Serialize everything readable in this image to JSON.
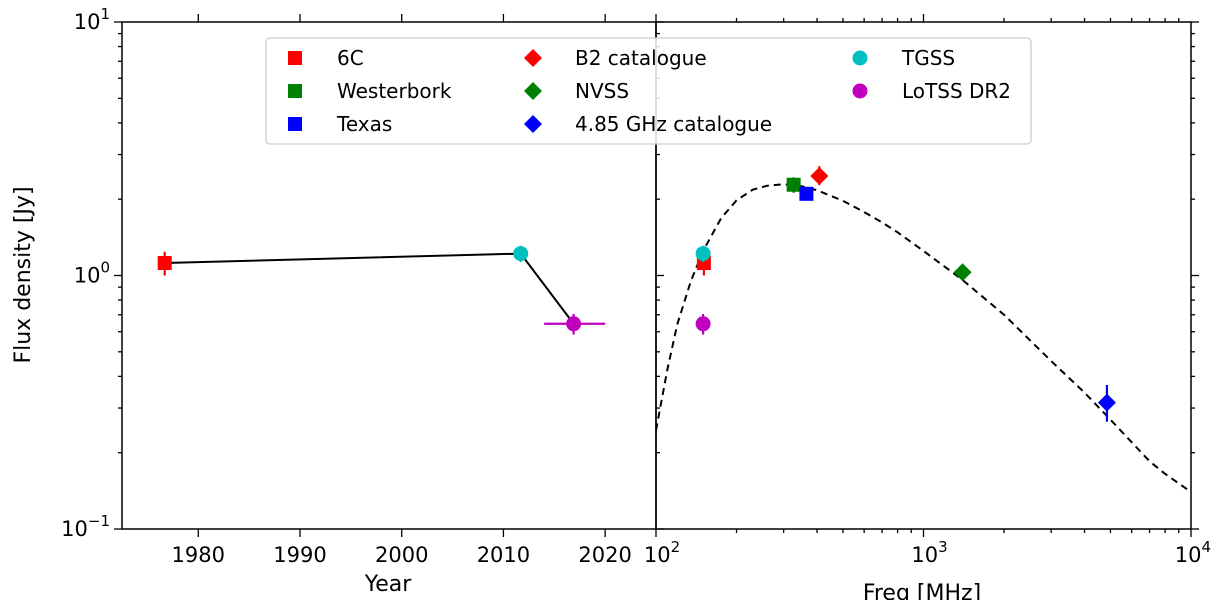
{
  "chart_data": [
    {
      "type": "scatter",
      "panel": "left",
      "xlabel": "Year",
      "ylabel": "Flux density [Jy]",
      "xlim": [
        1972.5,
        2025
      ],
      "ylim": [
        0.1,
        10
      ],
      "yscale": "log",
      "xticks": [
        1980,
        1990,
        2000,
        2010,
        2020
      ],
      "x_tick_labels": [
        "1980",
        "1990",
        "2000",
        "2010",
        "2020"
      ],
      "y_tick_labels": [
        {
          "base": "10",
          "exp": "−1",
          "value": 0.1
        },
        {
          "base": "10",
          "exp": "0",
          "value": 1
        },
        {
          "base": "10",
          "exp": "1",
          "value": 10
        }
      ],
      "line": [
        {
          "x": 1976.7,
          "y": 1.12
        },
        {
          "x": 2011.7,
          "y": 1.22
        },
        {
          "x": 2016.9,
          "y": 0.645
        }
      ],
      "series": [
        {
          "name": "6C",
          "marker": "square",
          "color": "#ff0000",
          "points": [
            {
              "x": 1976.7,
              "y": 1.12,
              "yerr": [
                1.0,
                1.24
              ],
              "xerr": null
            }
          ]
        },
        {
          "name": "TGSS",
          "marker": "circle",
          "color": "#00bfbf",
          "points": [
            {
              "x": 2011.7,
              "y": 1.22,
              "yerr": [
                1.13,
                1.31
              ],
              "xerr": null
            }
          ]
        },
        {
          "name": "LoTSS DR2",
          "marker": "circle",
          "color": "#bf00bf",
          "points": [
            {
              "x": 2016.9,
              "y": 0.645,
              "yerr": [
                0.585,
                0.705
              ],
              "xerr": [
                2014,
                2020
              ]
            }
          ]
        }
      ]
    },
    {
      "type": "scatter",
      "panel": "right",
      "xlabel": "Freq [MHz]",
      "xscale": "log",
      "yscale": "log",
      "xlim": [
        100,
        10000
      ],
      "ylim": [
        0.1,
        10
      ],
      "x_tick_labels": [
        {
          "base": "10",
          "exp": "2",
          "value": 100
        },
        {
          "base": "10",
          "exp": "3",
          "value": 1000
        },
        {
          "base": "10",
          "exp": "4",
          "value": 10000
        }
      ],
      "series": [
        {
          "name": "6C",
          "marker": "square",
          "color": "#ff0000",
          "points": [
            {
              "x": 151,
              "y": 1.12,
              "yerr": [
                1.0,
                1.24
              ]
            }
          ]
        },
        {
          "name": "Westerbork",
          "marker": "square",
          "color": "#008000",
          "points": [
            {
              "x": 327,
              "y": 2.28,
              "yerr": [
                2.12,
                2.44
              ]
            }
          ]
        },
        {
          "name": "Texas",
          "marker": "square",
          "color": "#0000ff",
          "points": [
            {
              "x": 365,
              "y": 2.1,
              "yerr": [
                1.98,
                2.22
              ]
            }
          ]
        },
        {
          "name": "B2 catalogue",
          "marker": "diamond",
          "color": "#ff0000",
          "points": [
            {
              "x": 408,
              "y": 2.47,
              "yerr": [
                2.27,
                2.7
              ]
            }
          ]
        },
        {
          "name": "NVSS",
          "marker": "diamond",
          "color": "#008000",
          "points": [
            {
              "x": 1400,
              "y": 1.03,
              "yerr": [
                0.96,
                1.1
              ]
            }
          ]
        },
        {
          "name": "4.85 GHz catalogue",
          "marker": "diamond",
          "color": "#0000ff",
          "points": [
            {
              "x": 4850,
              "y": 0.315,
              "yerr": [
                0.265,
                0.37
              ]
            }
          ]
        },
        {
          "name": "TGSS",
          "marker": "circle",
          "color": "#00bfbf",
          "points": [
            {
              "x": 150,
              "y": 1.22,
              "yerr": [
                1.13,
                1.31
              ]
            }
          ]
        },
        {
          "name": "LoTSS DR2",
          "marker": "circle",
          "color": "#bf00bf",
          "points": [
            {
              "x": 150,
              "y": 0.645,
              "yerr": [
                0.585,
                0.705
              ]
            }
          ]
        }
      ],
      "fit_curve": {
        "style": "dashed",
        "color": "#000000",
        "points": [
          [
            100,
            0.245
          ],
          [
            110,
            0.42
          ],
          [
            120,
            0.64
          ],
          [
            135,
            0.95
          ],
          [
            150,
            1.25
          ],
          [
            175,
            1.68
          ],
          [
            200,
            1.98
          ],
          [
            230,
            2.18
          ],
          [
            260,
            2.26
          ],
          [
            300,
            2.29
          ],
          [
            350,
            2.25
          ],
          [
            400,
            2.17
          ],
          [
            500,
            1.97
          ],
          [
            600,
            1.78
          ],
          [
            700,
            1.62
          ],
          [
            800,
            1.48
          ],
          [
            1000,
            1.25
          ],
          [
            1400,
            0.96
          ],
          [
            2000,
            0.7
          ],
          [
            3000,
            0.46
          ],
          [
            4000,
            0.345
          ],
          [
            5000,
            0.27
          ],
          [
            6000,
            0.22
          ],
          [
            7000,
            0.185
          ],
          [
            8000,
            0.165
          ],
          [
            10000,
            0.14
          ]
        ]
      }
    }
  ],
  "legend": {
    "placement": "top-center",
    "items": [
      {
        "label": "6C",
        "marker": "square",
        "color": "#ff0000"
      },
      {
        "label": "Westerbork",
        "marker": "square",
        "color": "#008000"
      },
      {
        "label": "Texas",
        "marker": "square",
        "color": "#0000ff"
      },
      {
        "label": "B2 catalogue",
        "marker": "diamond",
        "color": "#ff0000"
      },
      {
        "label": "NVSS",
        "marker": "diamond",
        "color": "#008000"
      },
      {
        "label": "4.85 GHz catalogue",
        "marker": "diamond",
        "color": "#0000ff"
      },
      {
        "label": "TGSS",
        "marker": "circle",
        "color": "#00bfbf"
      },
      {
        "label": "LoTSS DR2",
        "marker": "circle",
        "color": "#bf00bf"
      }
    ]
  }
}
